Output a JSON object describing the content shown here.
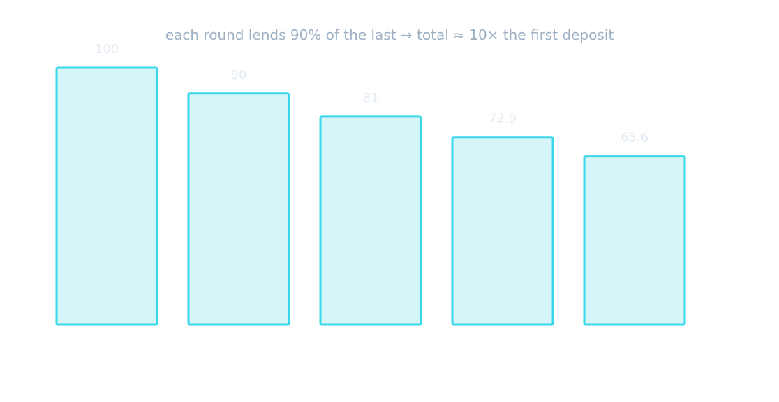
{
  "chart_data": {
    "type": "bar",
    "subtitle": "each round lends 90% of the last → total ≈ 10× the first deposit",
    "values": [
      100,
      90,
      81,
      72.9,
      65.6
    ],
    "data_labels": [
      "100",
      "90",
      "81",
      "72.9",
      "65.6"
    ],
    "ylim": [
      0,
      100
    ],
    "grid": false,
    "legend": "none"
  },
  "colors": {
    "bar_fill": "#d5f5f9",
    "bar_stroke": "#38d8ea",
    "label_text": "#e3ebf4",
    "subtitle_text": "#9db0c4",
    "background": "#ffffff"
  }
}
